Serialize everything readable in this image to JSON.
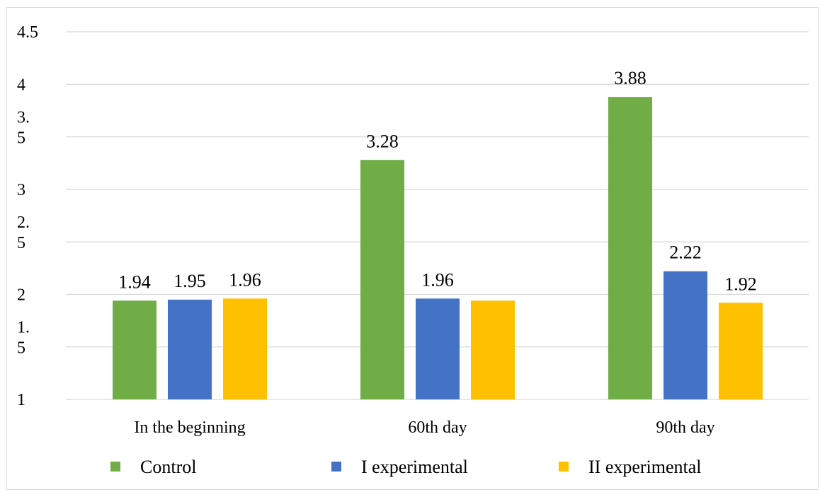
{
  "chart_data": {
    "type": "bar",
    "title": "",
    "xlabel": "",
    "ylabel": "",
    "categories": [
      "In the beginning",
      "60th day",
      "90th day"
    ],
    "series": [
      {
        "name": "Control",
        "color": "#70ad47",
        "values": [
          1.94,
          3.28,
          3.88
        ]
      },
      {
        "name": "I experimental",
        "color": "#4472c4",
        "values": [
          1.95,
          1.96,
          2.22
        ]
      },
      {
        "name": "II experimental",
        "color": "#ffc000",
        "values": [
          1.96,
          1.94,
          1.92
        ]
      }
    ],
    "data_labels": [
      [
        "1.94",
        "3.28",
        "3.88"
      ],
      [
        "1.95",
        "1.96",
        "2.22"
      ],
      [
        "1.96",
        "",
        "1.92"
      ]
    ],
    "ylim": [
      1,
      4.5
    ],
    "yticks": [
      1,
      1.5,
      2,
      2.5,
      3,
      3.5,
      4,
      4.5
    ],
    "ytick_labels": [
      [
        "1"
      ],
      [
        "1.",
        "5"
      ],
      [
        "2"
      ],
      [
        "2.",
        "5"
      ],
      [
        "3"
      ],
      [
        "3.",
        "5"
      ],
      [
        "4"
      ],
      [
        "4.5"
      ]
    ],
    "grid": true,
    "legend_position": "bottom",
    "colors": {
      "gridline": "#d9d9d9",
      "frame": "#d9d9d9"
    }
  }
}
